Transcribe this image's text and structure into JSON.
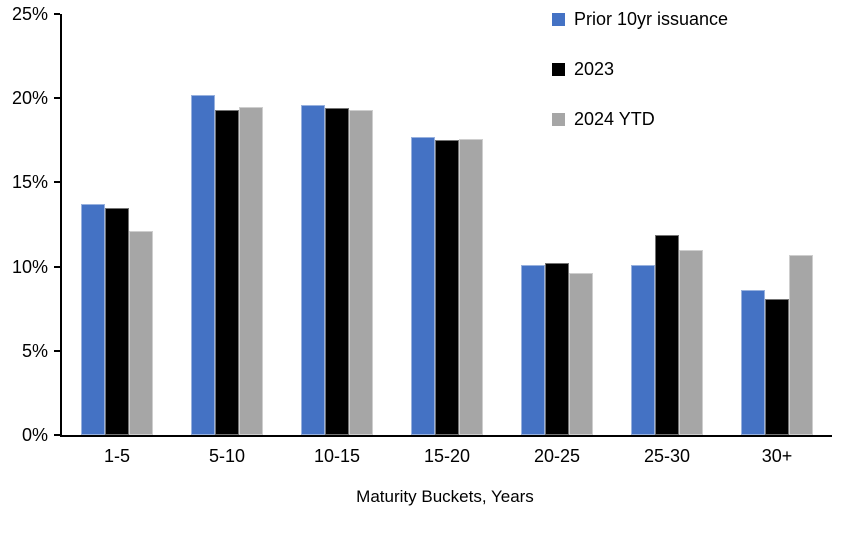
{
  "chart_data": {
    "type": "bar",
    "title": "",
    "xlabel": "Maturity Buckets, Years",
    "ylabel": "",
    "ylim": [
      0,
      25
    ],
    "yticks": [
      0,
      5,
      10,
      15,
      20,
      25
    ],
    "ytick_labels": [
      "0%",
      "5%",
      "10%",
      "15%",
      "20%",
      "25%"
    ],
    "grid": false,
    "legend_position": "top-right",
    "categories": [
      "1-5",
      "5-10",
      "10-15",
      "15-20",
      "20-25",
      "25-30",
      "30+"
    ],
    "series": [
      {
        "name": "Prior 10yr issuance",
        "color": "#4472C4",
        "values": [
          13.7,
          20.2,
          19.6,
          17.7,
          10.1,
          10.1,
          8.6
        ]
      },
      {
        "name": "2023",
        "color": "#000000",
        "values": [
          13.5,
          19.3,
          19.4,
          17.5,
          10.2,
          11.9,
          8.1
        ]
      },
      {
        "name": "2024 YTD",
        "color": "#A6A6A6",
        "values": [
          12.1,
          19.5,
          19.3,
          17.6,
          9.6,
          11.0,
          10.7
        ]
      }
    ],
    "axis_color": "#000000",
    "background_color": "#FFFFFF"
  }
}
